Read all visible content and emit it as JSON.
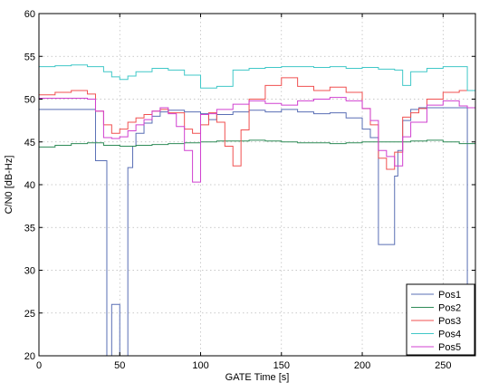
{
  "chart_data": {
    "type": "line",
    "title": "",
    "xlabel": "GATE Time [s]",
    "ylabel": "C/N0 [dB-Hz]",
    "xlim": [
      0,
      270
    ],
    "ylim": [
      20,
      60
    ],
    "xticks": [
      0,
      50,
      100,
      150,
      200,
      250
    ],
    "yticks": [
      20,
      25,
      30,
      35,
      40,
      45,
      50,
      55,
      60
    ],
    "grid": true,
    "step": true,
    "legend_position": "bottom-right",
    "series": [
      {
        "name": "Pos1",
        "color": "#5a6fb5",
        "x": [
          0,
          10,
          15,
          35,
          38,
          42,
          45,
          50,
          52,
          55,
          58,
          60,
          65,
          70,
          75,
          80,
          90,
          100,
          105,
          110,
          120,
          130,
          140,
          150,
          160,
          170,
          180,
          190,
          200,
          205,
          210,
          212,
          220,
          222,
          225,
          230,
          235,
          240,
          245,
          250,
          255,
          260,
          265,
          268,
          270
        ],
        "y": [
          48.8,
          48.8,
          48.8,
          42.8,
          42.8,
          20,
          26,
          20,
          20,
          42,
          44.5,
          46,
          47.2,
          48,
          48.5,
          48.7,
          48.5,
          48.3,
          47.6,
          48.2,
          48.5,
          48.7,
          48.5,
          48.8,
          48.5,
          48.3,
          48.4,
          47.8,
          46.5,
          45.5,
          33,
          33,
          41,
          44,
          47.5,
          48.8,
          49,
          49,
          49,
          49,
          49,
          49,
          20,
          20,
          20
        ]
      },
      {
        "name": "Pos2",
        "color": "#2e8b57",
        "x": [
          0,
          10,
          20,
          30,
          40,
          50,
          60,
          70,
          80,
          90,
          100,
          110,
          120,
          130,
          140,
          150,
          160,
          170,
          180,
          190,
          200,
          210,
          220,
          230,
          240,
          250,
          260,
          270
        ],
        "y": [
          44.4,
          44.6,
          44.8,
          44.9,
          44.6,
          44.5,
          44.6,
          44.7,
          44.8,
          44.9,
          45,
          45.1,
          45.1,
          45.2,
          45.1,
          45,
          44.9,
          44.9,
          44.8,
          44.9,
          45,
          45,
          45,
          45.1,
          45.2,
          45,
          44.8,
          44.8
        ]
      },
      {
        "name": "Pos3",
        "color": "#f05050",
        "x": [
          0,
          10,
          20,
          30,
          35,
          40,
          45,
          50,
          55,
          60,
          65,
          70,
          75,
          80,
          90,
          95,
          100,
          105,
          110,
          115,
          120,
          125,
          130,
          140,
          150,
          160,
          170,
          180,
          190,
          200,
          205,
          210,
          215,
          220,
          225,
          230,
          235,
          240,
          250,
          260,
          270
        ],
        "y": [
          50.5,
          50.8,
          51,
          50.6,
          48.6,
          47,
          46,
          46.5,
          47.3,
          47.8,
          48.2,
          48.6,
          48.8,
          48.4,
          46.5,
          46,
          47,
          48.4,
          47.3,
          44.5,
          42.2,
          46.4,
          50,
          51.6,
          52.5,
          51.5,
          51,
          51.4,
          50.8,
          48.9,
          47,
          43.1,
          41.8,
          43.8,
          47.9,
          48.4,
          48.9,
          50,
          50.8,
          51,
          51.4
        ]
      },
      {
        "name": "Pos4",
        "color": "#40c8c8",
        "x": [
          0,
          10,
          20,
          30,
          40,
          45,
          50,
          55,
          60,
          70,
          80,
          90,
          100,
          110,
          120,
          130,
          140,
          150,
          160,
          170,
          180,
          190,
          200,
          210,
          220,
          225,
          230,
          240,
          250,
          260,
          265,
          270
        ],
        "y": [
          53.8,
          53.9,
          54,
          53.8,
          53.2,
          52.6,
          52.3,
          52.7,
          53.2,
          53.6,
          53.4,
          52.8,
          51.3,
          51.5,
          53.4,
          53.6,
          53.7,
          53.8,
          53.8,
          53.7,
          53.8,
          53.6,
          53.7,
          53.5,
          53.4,
          51.6,
          53.2,
          53.6,
          53.8,
          53.8,
          51,
          51
        ]
      },
      {
        "name": "Pos5",
        "color": "#d040d0",
        "x": [
          0,
          10,
          20,
          30,
          35,
          40,
          45,
          50,
          55,
          60,
          65,
          70,
          75,
          80,
          85,
          90,
          95,
          100,
          105,
          110,
          120,
          130,
          140,
          150,
          160,
          170,
          180,
          190,
          200,
          205,
          210,
          215,
          220,
          225,
          230,
          240,
          250,
          260,
          265,
          270
        ],
        "y": [
          50.1,
          50.1,
          50.1,
          50,
          48.6,
          45.5,
          45.4,
          45.6,
          46.3,
          47,
          47.6,
          48.6,
          49,
          48.3,
          46.8,
          44,
          40.3,
          48.2,
          48.3,
          48.8,
          49.4,
          49.8,
          49.5,
          49.3,
          49.8,
          50,
          50.2,
          49.8,
          48.9,
          47.5,
          44,
          43.3,
          42.2,
          45.6,
          47.3,
          49.3,
          49.8,
          49.2,
          49,
          49
        ]
      }
    ]
  }
}
